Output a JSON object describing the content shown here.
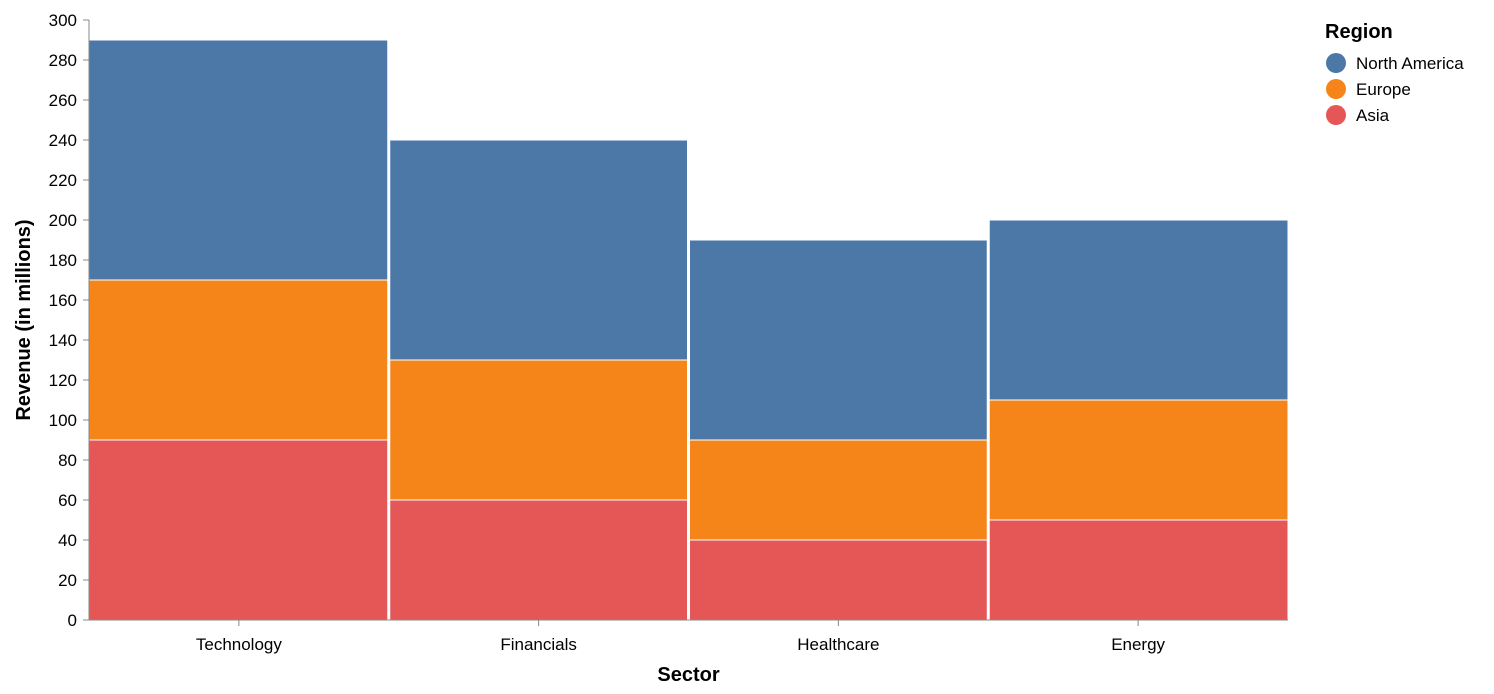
{
  "chart_data": {
    "type": "bar",
    "stacked": true,
    "categories": [
      "Technology",
      "Financials",
      "Healthcare",
      "Energy"
    ],
    "series": [
      {
        "name": "Asia",
        "color": "#e45756",
        "values": [
          90,
          60,
          40,
          50
        ]
      },
      {
        "name": "Europe",
        "color": "#f58518",
        "values": [
          80,
          70,
          50,
          60
        ]
      },
      {
        "name": "North America",
        "color": "#4c78a8",
        "values": [
          120,
          110,
          100,
          90
        ]
      }
    ],
    "xlabel": "Sector",
    "ylabel": "Revenue (in millions)",
    "ylim": [
      0,
      300
    ],
    "yticks": [
      0,
      20,
      40,
      60,
      80,
      100,
      120,
      140,
      160,
      180,
      200,
      220,
      240,
      260,
      280,
      300
    ],
    "legend": {
      "title": "Region",
      "placement": "top-right",
      "entries": [
        {
          "name": "North America",
          "color": "#4c78a8"
        },
        {
          "name": "Europe",
          "color": "#f58518"
        },
        {
          "name": "Asia",
          "color": "#e45756"
        }
      ]
    }
  }
}
